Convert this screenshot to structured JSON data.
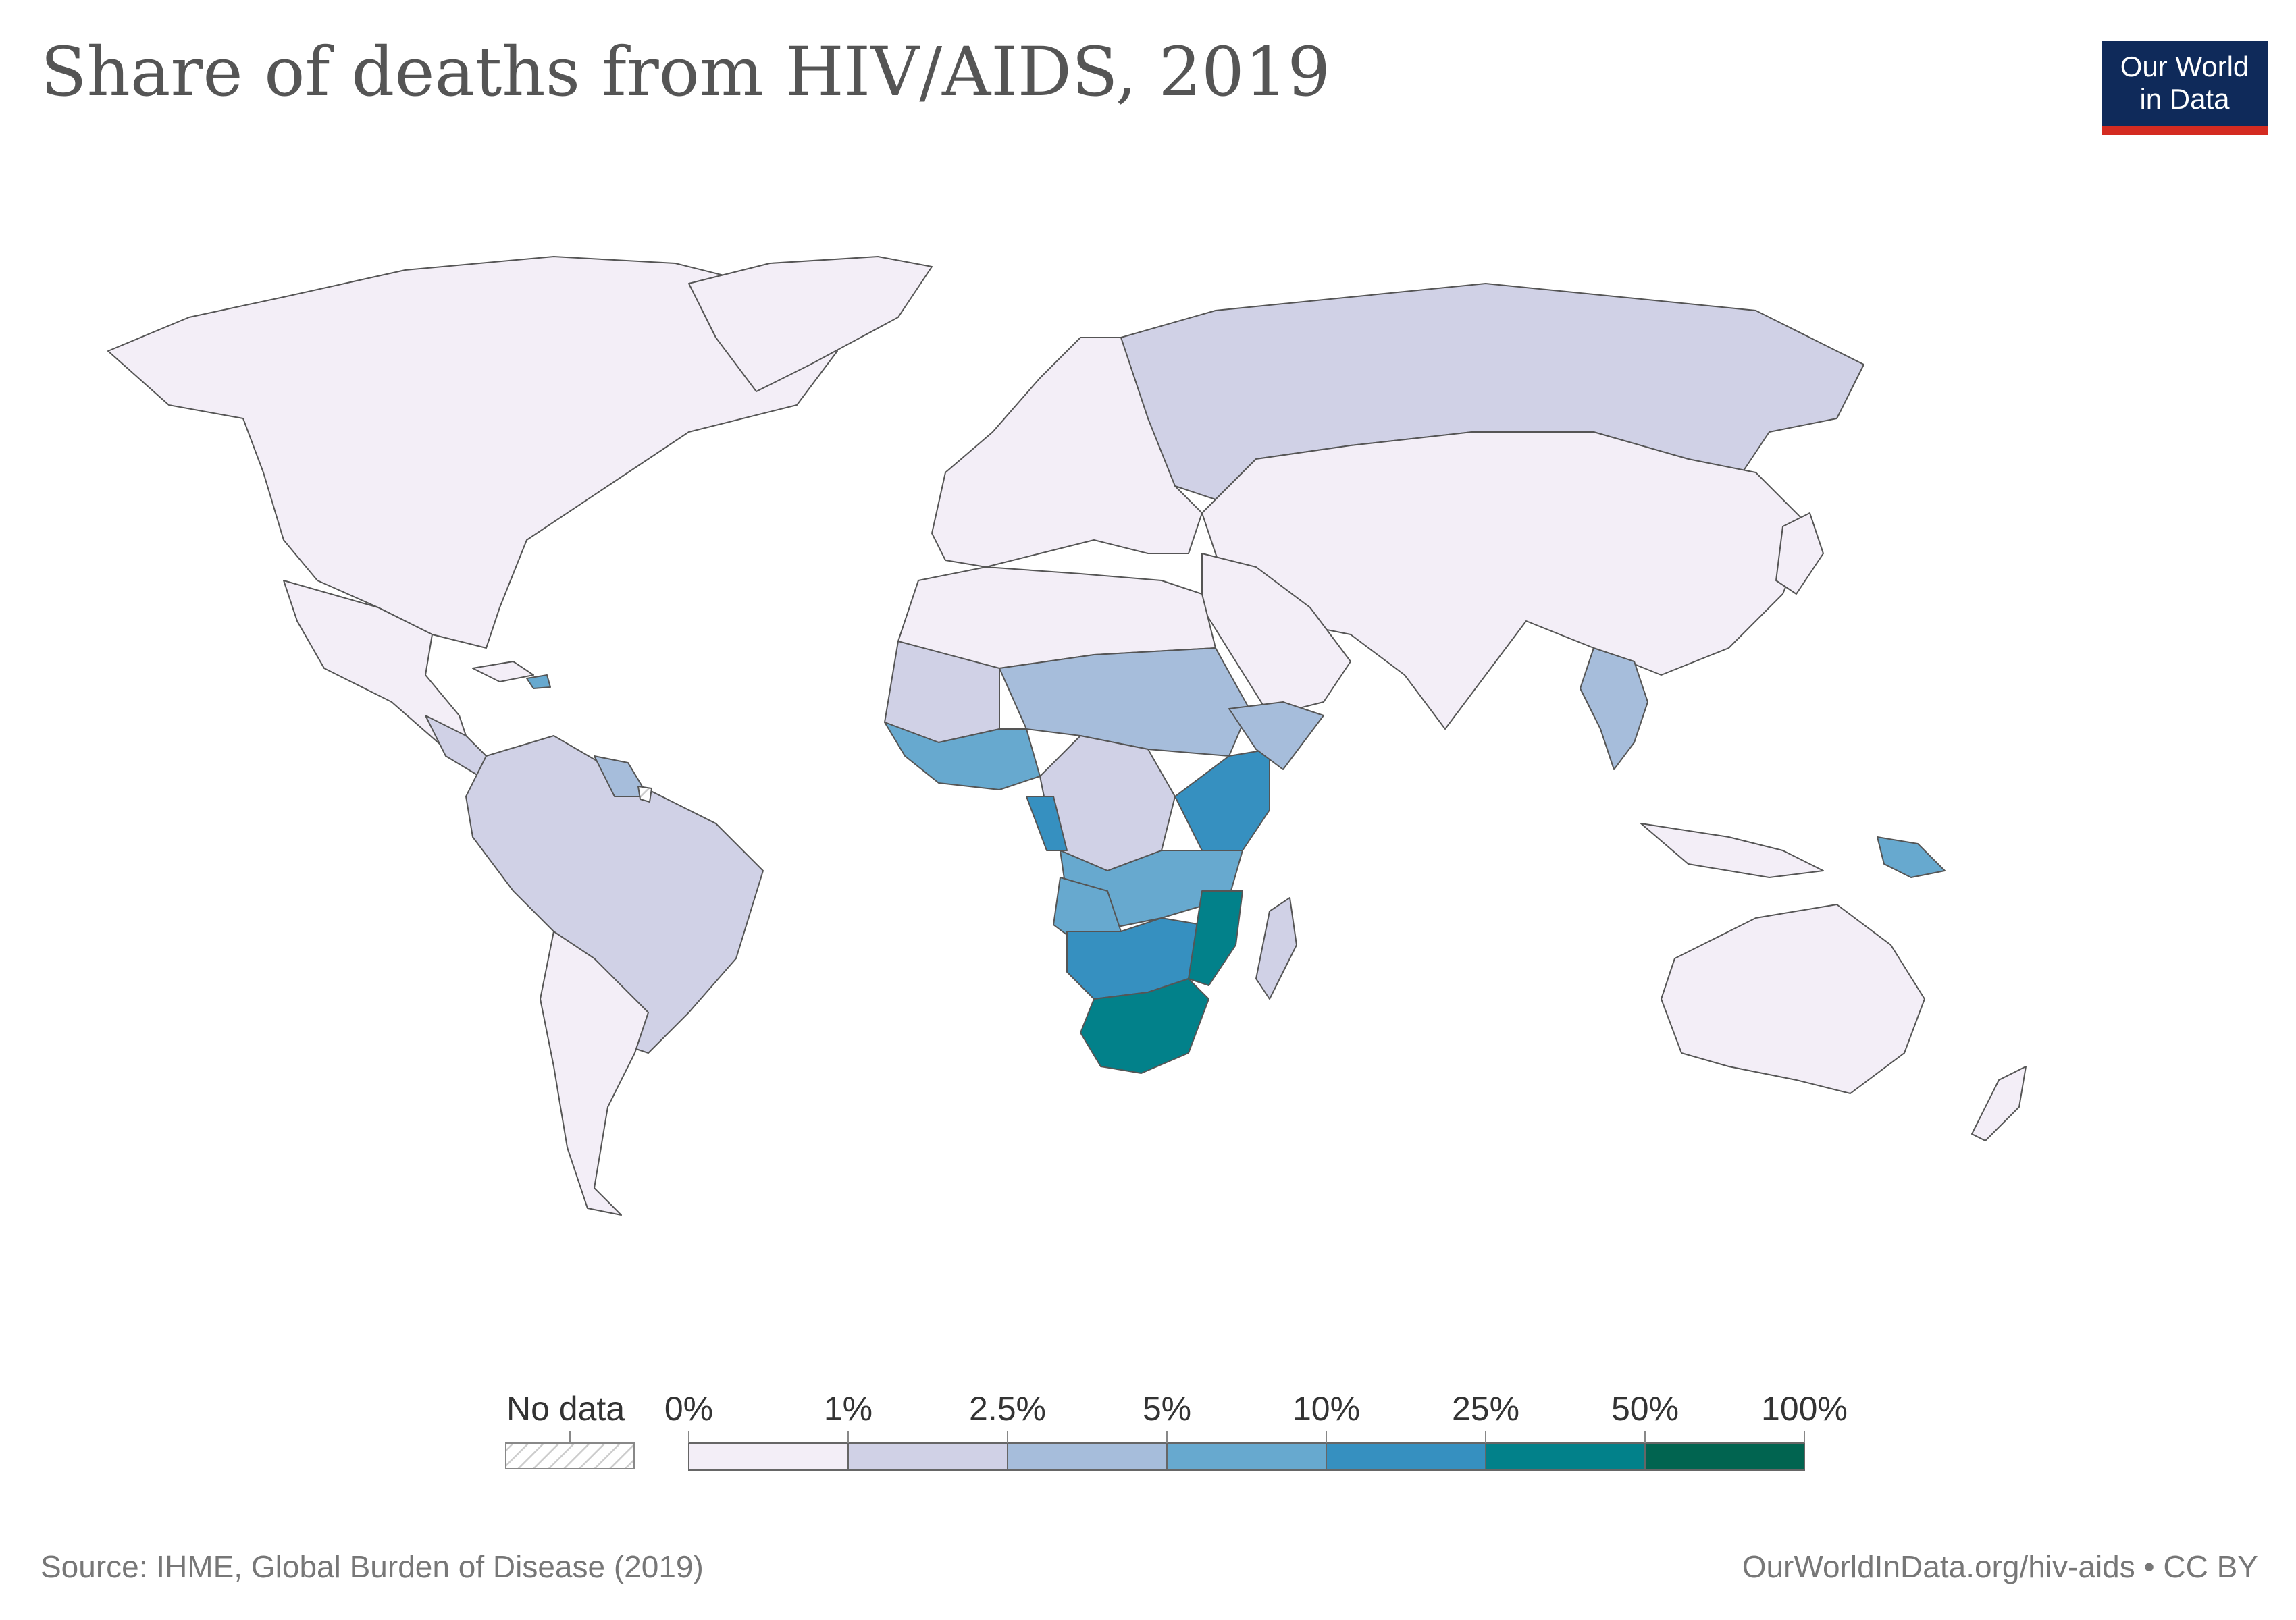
{
  "title": "Share of deaths from HIV/AIDS, 2019",
  "logo": {
    "line1": "Our World",
    "line2": "in Data",
    "bg_color": "#0f2a5a",
    "accent_color": "#d42b21"
  },
  "legend": {
    "no_data_label": "No data",
    "bins": [
      {
        "label": "0%",
        "color": "#f3eef7"
      },
      {
        "label": "1%",
        "color": "#d0d1e6"
      },
      {
        "label": "2.5%",
        "color": "#a6bddb"
      },
      {
        "label": "5%",
        "color": "#67a9cf"
      },
      {
        "label": "10%",
        "color": "#3690c0"
      },
      {
        "label": "25%",
        "color": "#02818a"
      },
      {
        "label": "50%",
        "color": "#016450"
      },
      {
        "label": "100%",
        "color": ""
      }
    ]
  },
  "footer": {
    "source": "Source: IHME, Global Burden of Disease (2019)",
    "url": "OurWorldInData.org/hiv-aids • CC BY"
  }
}
